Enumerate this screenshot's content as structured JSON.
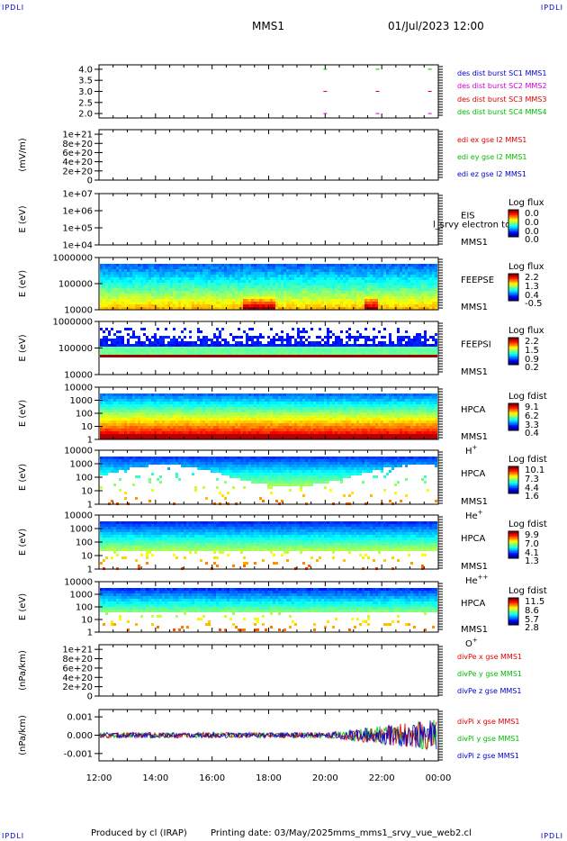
{
  "header": {
    "corner_logo": "IPDLI",
    "title": "MMS1",
    "datetime": "01/Jul/2023 12:00"
  },
  "footer": {
    "produced_by": "Produced by cl (IRAP)",
    "printing_date": "Printing date: 03/May/2025",
    "product": "mms_mms1_srvy_vue_web2.cl"
  },
  "time_axis": {
    "start_hour": 12,
    "end_hour": 24,
    "ticks": [
      "12:00",
      "14:00",
      "16:00",
      "18:00",
      "20:00",
      "22:00",
      "00:00"
    ]
  },
  "colors": {
    "blue": "#0000cc",
    "magenta": "#cc00cc",
    "red": "#dd0000",
    "green": "#00bb00"
  },
  "chart_data": [
    {
      "id": "dist",
      "type": "scatter",
      "ylim": [
        1.8,
        4.2
      ],
      "yticks": [
        "4.0",
        "3.5",
        "3.0",
        "2.5",
        "2.0"
      ],
      "ytick_values": [
        4.0,
        3.5,
        3.0,
        2.5,
        2.0
      ],
      "ylabel": "",
      "series": [
        {
          "name": "des dist burst SC1 MMS1",
          "color": "#0000cc",
          "y": 4.0,
          "x": []
        },
        {
          "name": "des dist burst SC2 MMS2",
          "color": "#cc00cc",
          "y": 2.0,
          "x": [
            20.0,
            21.85,
            23.7
          ]
        },
        {
          "name": "des dist burst SC3 MMS3",
          "color": "#dd0000",
          "y": 3.0,
          "x": [
            20.0,
            21.85,
            23.7
          ]
        },
        {
          "name": "des dist burst SC4 MMS4",
          "color": "#00bb00",
          "y": 4.0,
          "x": [
            20.0,
            21.85,
            23.7
          ]
        }
      ]
    },
    {
      "id": "edi",
      "type": "line",
      "ylim": [
        0,
        1.1e+21
      ],
      "yticks": [
        "1e+21",
        "8e+20",
        "6e+20",
        "4e+20",
        "2e+20",
        "0"
      ],
      "ytick_values": [
        1e+21,
        8e+20,
        6e+20,
        4e+20,
        2e+20,
        0
      ],
      "ylabel": "(mV/m)",
      "series": [
        {
          "name": "edi ex gse l2 MMS1",
          "color": "#dd0000"
        },
        {
          "name": "edi ey gse l2 MMS1",
          "color": "#00bb00"
        },
        {
          "name": "edi ez gse l2 MMS1",
          "color": "#0000cc"
        }
      ]
    },
    {
      "id": "eis",
      "type": "heatmap",
      "ylim": [
        10000,
        10000000
      ],
      "log": true,
      "yticks": [
        "1e+07",
        "1e+06",
        "1e+05",
        "1e+04"
      ],
      "ytick_values": [
        10000000.0,
        1000000.0,
        100000.0,
        10000.0
      ],
      "ylabel": "E (eV)",
      "labels": [
        "EIS",
        "MMS1"
      ],
      "overlay_text": "l_srvy electron to",
      "colorbar": {
        "title": "Log flux",
        "ticks": [
          "0.0",
          "0.0",
          "0.0",
          "0.0"
        ]
      }
    },
    {
      "id": "feeps_e",
      "type": "heatmap",
      "ylim": [
        10000,
        1000000
      ],
      "log": true,
      "yticks": [
        "1000000",
        "100000",
        "10000"
      ],
      "ytick_values": [
        1000000.0,
        100000.0,
        10000.0
      ],
      "ylabel": "E (eV)",
      "labels": [
        "FEEPSE",
        "MMS1"
      ],
      "colorbar": {
        "title": "Log flux",
        "ticks": [
          "2.2",
          "1.3",
          "0.4",
          "-0.5"
        ]
      }
    },
    {
      "id": "feeps_i",
      "type": "heatmap",
      "ylim": [
        10000,
        1000000
      ],
      "log": true,
      "yticks": [
        "1000000",
        "100000",
        "10000"
      ],
      "ytick_values": [
        1000000.0,
        100000.0,
        10000.0
      ],
      "ylabel": "E (eV)",
      "labels": [
        "FEEPSI",
        "MMS1"
      ],
      "colorbar": {
        "title": "Log flux",
        "ticks": [
          "2.2",
          "1.5",
          "0.9",
          "0.2"
        ]
      }
    },
    {
      "id": "hpca_h",
      "type": "heatmap",
      "ylim": [
        1,
        10000
      ],
      "log": true,
      "yticks": [
        "10000",
        "1000",
        "100",
        "10",
        "1"
      ],
      "ytick_values": [
        10000.0,
        1000.0,
        100.0,
        10,
        1
      ],
      "ylabel": "E (eV)",
      "labels": [
        "HPCA",
        "MMS1"
      ],
      "species": "H",
      "species_sup": "+",
      "colorbar": {
        "title": "Log fdist",
        "ticks": [
          "9.1",
          "6.2",
          "3.3",
          "0.4"
        ]
      }
    },
    {
      "id": "hpca_he",
      "type": "heatmap",
      "ylim": [
        1,
        10000
      ],
      "log": true,
      "yticks": [
        "10000",
        "1000",
        "100",
        "10",
        "1"
      ],
      "ytick_values": [
        10000.0,
        1000.0,
        100.0,
        10,
        1
      ],
      "ylabel": "E (eV)",
      "labels": [
        "HPCA",
        "MMS1"
      ],
      "species": "He",
      "species_sup": "+",
      "colorbar": {
        "title": "Log fdist",
        "ticks": [
          "10.1",
          "7.3",
          "4.4",
          "1.6"
        ]
      }
    },
    {
      "id": "hpca_hepp",
      "type": "heatmap",
      "ylim": [
        1,
        10000
      ],
      "log": true,
      "yticks": [
        "10000",
        "1000",
        "100",
        "10",
        "1"
      ],
      "ytick_values": [
        10000.0,
        1000.0,
        100.0,
        10,
        1
      ],
      "ylabel": "E (eV)",
      "labels": [
        "HPCA",
        "MMS1"
      ],
      "species": "He",
      "species_sup": "++",
      "colorbar": {
        "title": "Log fdist",
        "ticks": [
          "9.9",
          "7.0",
          "4.1",
          "1.3"
        ]
      }
    },
    {
      "id": "hpca_o",
      "type": "heatmap",
      "ylim": [
        1,
        10000
      ],
      "log": true,
      "yticks": [
        "10000",
        "1000",
        "100",
        "10",
        "1"
      ],
      "ytick_values": [
        10000.0,
        1000.0,
        100.0,
        10,
        1
      ],
      "ylabel": "E (eV)",
      "labels": [
        "HPCA",
        "MMS1"
      ],
      "species": "O",
      "species_sup": "+",
      "colorbar": {
        "title": "Log fdist",
        "ticks": [
          "11.5",
          "8.6",
          "5.7",
          "2.8"
        ]
      }
    },
    {
      "id": "divpe",
      "type": "line",
      "ylim": [
        0,
        1.1e+21
      ],
      "yticks": [
        "1e+21",
        "8e+20",
        "6e+20",
        "4e+20",
        "2e+20",
        "0"
      ],
      "ytick_values": [
        1e+21,
        8e+20,
        6e+20,
        4e+20,
        2e+20,
        0
      ],
      "ylabel": "(nPa/km)",
      "series": [
        {
          "name": "divPe x gse MMS1",
          "color": "#dd0000"
        },
        {
          "name": "divPe y gse MMS1",
          "color": "#00bb00"
        },
        {
          "name": "divPe z gse MMS1",
          "color": "#0000cc"
        }
      ]
    },
    {
      "id": "divpi",
      "type": "line",
      "ylim": [
        -0.0014,
        0.0014
      ],
      "yticks": [
        "0.001",
        "0.000",
        "-0.001"
      ],
      "ytick_values": [
        0.001,
        0.0,
        -0.001
      ],
      "ylabel": "(nPa/km)",
      "series": [
        {
          "name": "divPi x gse MMS1",
          "color": "#dd0000"
        },
        {
          "name": "divPi y gse MMS1",
          "color": "#00bb00"
        },
        {
          "name": "divPi z gse MMS1",
          "color": "#0000cc"
        }
      ]
    }
  ]
}
